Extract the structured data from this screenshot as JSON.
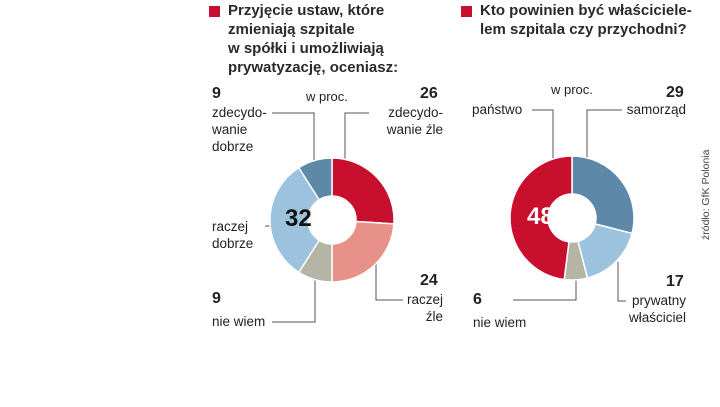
{
  "chart_data": [
    {
      "type": "pie",
      "donut": true,
      "title": "Przyjęcie ustaw, które\nzmieniają szpitale\nw spółki i umożliwiają\nprywatyzację, oceniasz:",
      "unit_label": "w proc.",
      "slices": [
        {
          "value": 26,
          "value_label": "26",
          "label": "zdecydo-\nwanie źle",
          "color": "#c8102e"
        },
        {
          "value": 24,
          "value_label": "24",
          "label": "raczej\nźle",
          "color": "#e8918a"
        },
        {
          "value": 9,
          "value_label": "9",
          "label": "nie wiem",
          "color": "#b5b5a6"
        },
        {
          "value": 32,
          "value_label": "32",
          "label": "raczej\ndobrze",
          "color": "#9cc2dd"
        },
        {
          "value": 9,
          "value_label": "9",
          "label": "zdecydo-\nwanie\ndobrze",
          "color": "#5d88a8"
        }
      ]
    },
    {
      "type": "pie",
      "donut": true,
      "title": "Kto powinien być właściciele-\nlem szpitala czy przychodni?",
      "unit_label": "w proc.",
      "slices": [
        {
          "value": 29,
          "value_label": "29",
          "label": "samorząd",
          "color": "#5d88a8"
        },
        {
          "value": 17,
          "value_label": "17",
          "label": "prywatny\nwłaściciel",
          "color": "#9cc2dd"
        },
        {
          "value": 6,
          "value_label": "6",
          "label": "nie wiem",
          "color": "#b5b5a6"
        },
        {
          "value": 48,
          "value_label": "48",
          "label": "państwo",
          "color": "#c8102e"
        }
      ]
    }
  ],
  "source": "źródło: GfK Polonia",
  "colors": {
    "accent": "#c8102e"
  }
}
